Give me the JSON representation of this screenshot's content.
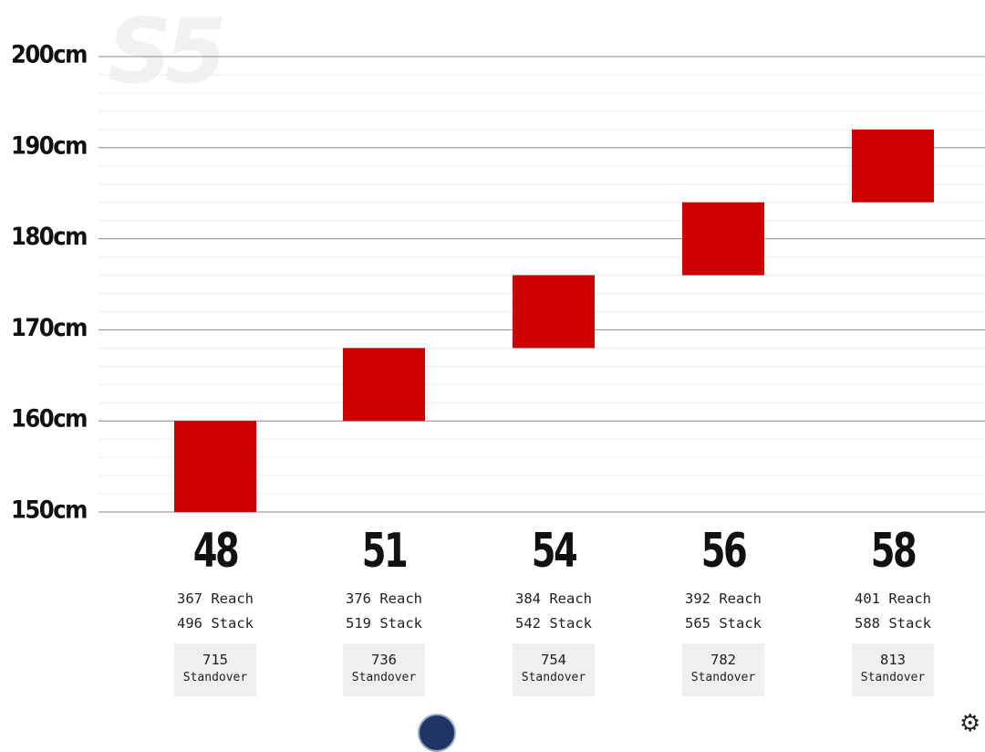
{
  "chart_data": {
    "type": "bar",
    "subtype": "floating-range",
    "watermark": "S5",
    "y_unit": "cm",
    "ylim": [
      150,
      200
    ],
    "y_ticks": [
      "150cm",
      "160cm",
      "170cm",
      "180cm",
      "190cm",
      "200cm"
    ],
    "y_tick_values": [
      150,
      160,
      170,
      180,
      190,
      200
    ],
    "grid": true,
    "bar_color": "#cc0000",
    "categories": [
      "48",
      "51",
      "54",
      "56",
      "58"
    ],
    "ranges": [
      [
        150,
        160
      ],
      [
        160,
        168
      ],
      [
        168,
        176
      ],
      [
        176,
        184
      ],
      [
        184,
        192
      ]
    ],
    "sizes": [
      {
        "size": "48",
        "reach": "367 Reach",
        "stack": "496 Stack",
        "standover_value": "715",
        "standover_label": "Standover"
      },
      {
        "size": "51",
        "reach": "376 Reach",
        "stack": "519 Stack",
        "standover_value": "736",
        "standover_label": "Standover"
      },
      {
        "size": "54",
        "reach": "384 Reach",
        "stack": "542 Stack",
        "standover_value": "754",
        "standover_label": "Standover"
      },
      {
        "size": "56",
        "reach": "392 Reach",
        "stack": "565 Stack",
        "standover_value": "782",
        "standover_label": "Standover"
      },
      {
        "size": "58",
        "reach": "401 Reach",
        "stack": "588 Stack",
        "standover_value": "813",
        "standover_label": "Standover"
      }
    ]
  },
  "icons": {
    "bottom_left": "blue-circle-icon",
    "bottom_right": "gear-icon"
  }
}
